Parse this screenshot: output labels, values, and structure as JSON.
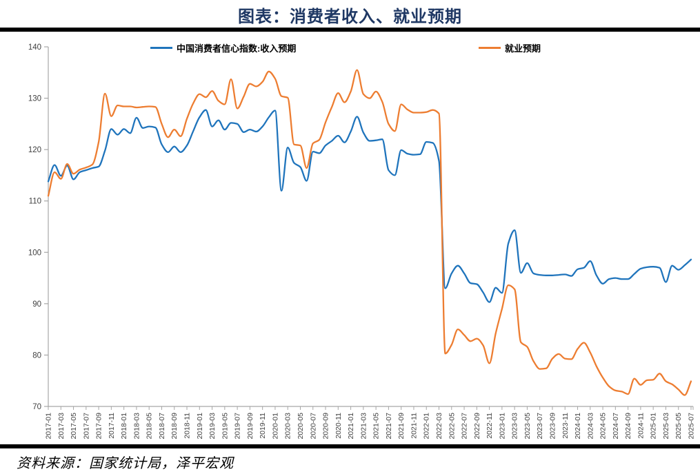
{
  "title": "图表：消费者收入、就业预期",
  "source": "资料来源：国家统计局，泽平宏观",
  "colors": {
    "income_line": "#1f74bc",
    "employment_line": "#ed7d31",
    "title_text": "#1f3864",
    "axis": "#a6a6a6",
    "tick_label": "#404040",
    "divider": "#000000"
  },
  "legend": {
    "items": [
      {
        "label": "中国消费者信心指数:收入预期",
        "series": "income"
      },
      {
        "label": "就业预期",
        "series": "employment"
      }
    ]
  },
  "chart_data": {
    "type": "line",
    "title": "图表：消费者收入、就业预期",
    "xlabel": "",
    "ylabel": "",
    "ylim": [
      70,
      140
    ],
    "ytick_step": 10,
    "yticks": [
      70,
      80,
      90,
      100,
      110,
      120,
      130,
      140
    ],
    "xtick_every": 2,
    "grid": false,
    "legend_position": "top",
    "x": [
      "2017-01",
      "2017-02",
      "2017-03",
      "2017-04",
      "2017-05",
      "2017-06",
      "2017-07",
      "2017-08",
      "2017-09",
      "2017-10",
      "2017-11",
      "2017-12",
      "2018-01",
      "2018-02",
      "2018-03",
      "2018-04",
      "2018-05",
      "2018-06",
      "2018-07",
      "2018-08",
      "2018-09",
      "2018-10",
      "2018-11",
      "2018-12",
      "2019-01",
      "2019-02",
      "2019-03",
      "2019-04",
      "2019-05",
      "2019-06",
      "2019-07",
      "2019-08",
      "2019-09",
      "2019-10",
      "2019-11",
      "2019-12",
      "2020-01",
      "2020-02",
      "2020-03",
      "2020-04",
      "2020-05",
      "2020-06",
      "2020-07",
      "2020-08",
      "2020-09",
      "2020-10",
      "2020-11",
      "2020-12",
      "2021-01",
      "2021-02",
      "2021-03",
      "2021-04",
      "2021-05",
      "2021-06",
      "2021-07",
      "2021-08",
      "2021-09",
      "2021-10",
      "2021-11",
      "2021-12",
      "2022-01",
      "2022-02",
      "2022-03",
      "2022-04",
      "2022-05",
      "2022-06",
      "2022-07",
      "2022-08",
      "2022-09",
      "2022-10",
      "2022-11",
      "2022-12",
      "2023-01",
      "2023-02",
      "2023-03",
      "2023-04",
      "2023-05",
      "2023-06",
      "2023-07",
      "2023-08",
      "2023-09",
      "2023-10",
      "2023-11",
      "2023-12",
      "2024-01",
      "2024-02",
      "2024-03",
      "2024-04",
      "2024-05",
      "2024-06",
      "2024-07",
      "2024-08",
      "2024-09",
      "2024-10",
      "2024-11",
      "2024-12",
      "2025-01",
      "2025-02",
      "2025-03",
      "2025-04",
      "2025-05",
      "2025-06",
      "2025-07"
    ],
    "series": [
      {
        "name": "中国消费者信心指数:收入预期",
        "color": "#1f74bc",
        "values": [
          113.8,
          117.0,
          114.9,
          116.9,
          114.2,
          115.6,
          116.0,
          116.4,
          116.7,
          119.8,
          124.0,
          122.9,
          124.0,
          123.2,
          126.2,
          124.2,
          124.5,
          124.3,
          121.0,
          119.5,
          120.6,
          119.5,
          120.8,
          123.6,
          126.3,
          127.7,
          124.5,
          125.7,
          123.9,
          125.2,
          125.0,
          123.4,
          123.9,
          123.5,
          124.5,
          126.3,
          127.6,
          112.0,
          120.4,
          117.4,
          116.6,
          113.9,
          119.6,
          119.3,
          120.8,
          121.7,
          122.7,
          121.4,
          123.5,
          126.4,
          123.3,
          121.7,
          121.8,
          122.0,
          116.0,
          115.0,
          119.9,
          119.2,
          119.0,
          119.1,
          121.5,
          121.3,
          117.8,
          93.0,
          95.9,
          97.4,
          95.9,
          94.0,
          93.8,
          92.2,
          90.3,
          93.1,
          92.1,
          101.7,
          104.3,
          96.0,
          97.9,
          95.9,
          95.6,
          95.5,
          95.5,
          95.6,
          95.7,
          95.4,
          96.7,
          97.0,
          98.3,
          95.5,
          93.9,
          94.8,
          95.0,
          94.8,
          94.8,
          95.8,
          96.8,
          97.1,
          97.2,
          97.0,
          94.2,
          97.4,
          96.6,
          97.5,
          98.6
        ]
      },
      {
        "name": "就业预期",
        "color": "#ed7d31",
        "values": [
          111.0,
          115.6,
          114.3,
          117.2,
          115.3,
          116.1,
          116.5,
          117.1,
          121.5,
          130.9,
          126.5,
          128.6,
          128.4,
          128.4,
          128.2,
          128.3,
          128.4,
          128.3,
          125.0,
          122.4,
          123.9,
          122.6,
          126.0,
          129.0,
          130.8,
          130.2,
          131.4,
          129.5,
          128.8,
          133.7,
          128.0,
          130.3,
          132.8,
          132.3,
          133.2,
          135.2,
          133.8,
          130.4,
          130.1,
          121.0,
          120.8,
          116.4,
          121.2,
          121.9,
          125.3,
          128.3,
          131.0,
          129.2,
          131.3,
          135.5,
          130.8,
          130.0,
          131.3,
          129.3,
          125.0,
          123.6,
          128.8,
          127.8,
          127.2,
          127.2,
          127.3,
          127.7,
          127.0,
          80.3,
          82.0,
          85.0,
          83.9,
          82.7,
          83.2,
          81.9,
          78.4,
          84.2,
          89.0,
          93.6,
          92.8,
          82.5,
          81.6,
          78.8,
          77.3,
          77.4,
          79.3,
          80.2,
          79.3,
          79.2,
          81.2,
          82.4,
          80.5,
          77.8,
          75.6,
          73.9,
          73.1,
          72.9,
          72.4,
          75.4,
          74.2,
          75.1,
          75.2,
          76.4,
          74.9,
          74.3,
          73.3,
          72.2,
          74.9
        ]
      }
    ]
  }
}
